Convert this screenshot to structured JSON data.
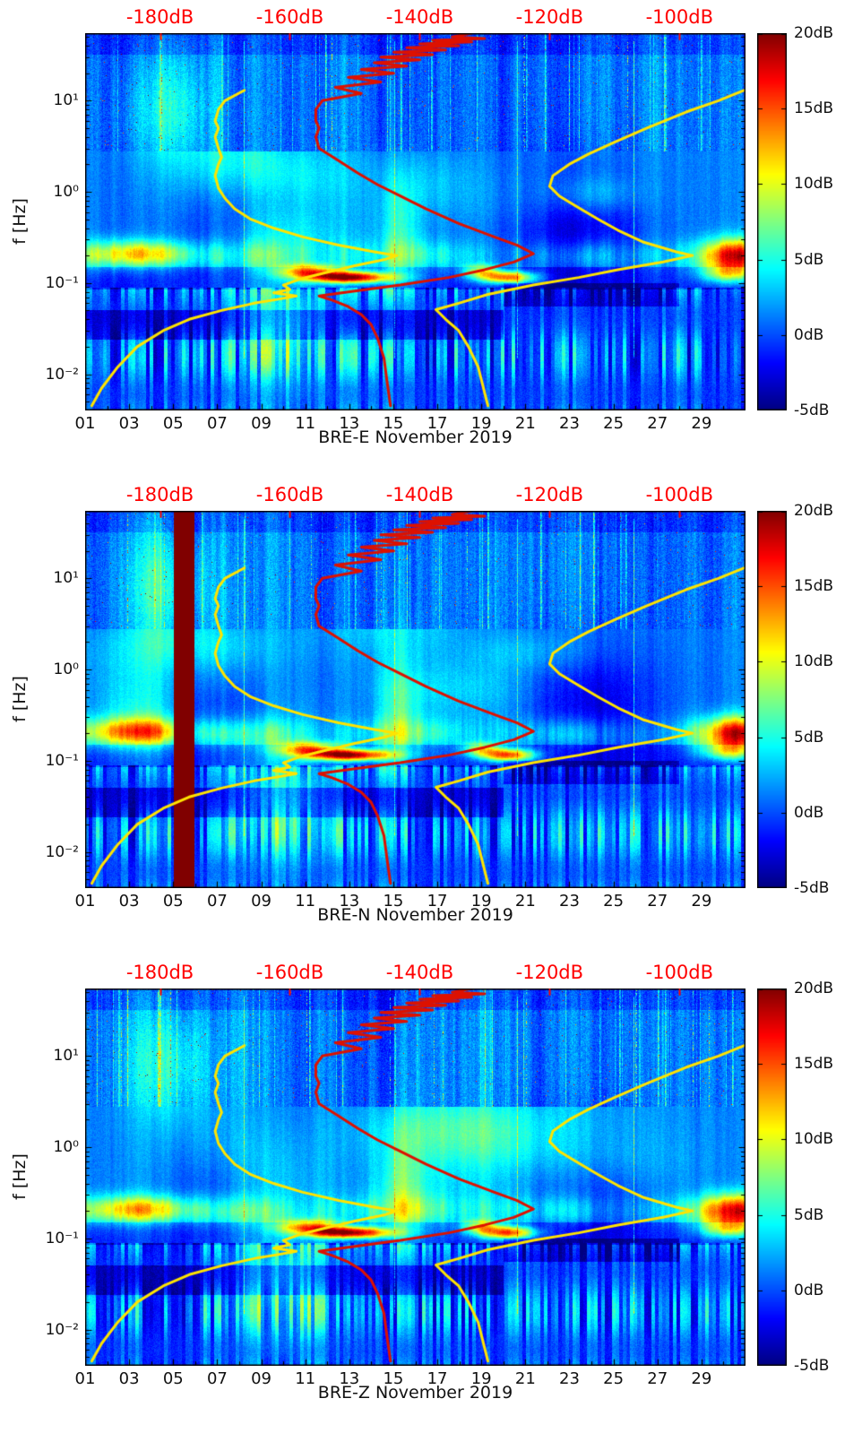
{
  "chart_data": {
    "type": "heatmap",
    "description": "Three seismic noise spectrograms (E, N, Z components) with jet colormap, overlaid median PSD curve (red) and low/high noise model curves (yellow) referenced to the red dB axis on top",
    "ylabel": "f [Hz]",
    "freq_range_hz": [
      0.004,
      55
    ],
    "day_range": [
      1,
      31
    ],
    "value_range_dB": [
      -5,
      20
    ],
    "x_ticks": {
      "days": [
        1,
        3,
        5,
        7,
        9,
        11,
        13,
        15,
        17,
        19,
        21,
        23,
        25,
        27,
        29
      ],
      "labels": [
        "01",
        "03",
        "05",
        "07",
        "09",
        "11",
        "13",
        "15",
        "17",
        "19",
        "21",
        "23",
        "25",
        "27",
        "29"
      ]
    },
    "y_ticks": [
      {
        "f": 0.01,
        "label": "10⁻²"
      },
      {
        "f": 0.1,
        "label": "10⁻¹"
      },
      {
        "f": 1,
        "label": "10⁰"
      },
      {
        "f": 10,
        "label": "10¹"
      }
    ],
    "top_axis": {
      "color": "#ff0000",
      "ticks": [
        {
          "dB": -180,
          "label": "-180dB"
        },
        {
          "dB": -160,
          "label": "-160dB"
        },
        {
          "dB": -140,
          "label": "-140dB"
        },
        {
          "dB": -120,
          "label": "-120dB"
        },
        {
          "dB": -100,
          "label": "-100dB"
        }
      ],
      "mapping": {
        "dB_ref": -180,
        "day_at_ref": 4.4,
        "days_per_20dB": 5.9
      }
    },
    "colorbar": {
      "colormap": "jet",
      "ticks": [
        {
          "v": 20,
          "label": "20dB"
        },
        {
          "v": 15,
          "label": "15dB"
        },
        {
          "v": 10,
          "label": "10dB"
        },
        {
          "v": 5,
          "label": "5dB"
        },
        {
          "v": 0,
          "label": "0dB"
        },
        {
          "v": -5,
          "label": "-5dB"
        }
      ]
    },
    "panels": [
      {
        "title": "BRE-E November 2019",
        "seed": 101,
        "features_extra": []
      },
      {
        "title": "BRE-N November 2019",
        "seed": 202,
        "features_extra": [
          {
            "kind": "vstripe",
            "day_start": 5.05,
            "day_end": 5.95,
            "amp": 26
          }
        ]
      },
      {
        "title": "BRE-Z November 2019",
        "seed": 303,
        "features_extra": []
      }
    ],
    "overlays": [
      {
        "name": "median-psd-curve",
        "color": "#dd1100",
        "width": 3,
        "points_freq_dB": [
          [
            55,
            -132
          ],
          [
            50,
            -135
          ],
          [
            48,
            -130
          ],
          [
            46,
            -138
          ],
          [
            44,
            -132
          ],
          [
            42,
            -140
          ],
          [
            40,
            -134
          ],
          [
            38,
            -142
          ],
          [
            36,
            -136
          ],
          [
            34,
            -144
          ],
          [
            32,
            -138
          ],
          [
            30,
            -146
          ],
          [
            28,
            -140
          ],
          [
            26,
            -147
          ],
          [
            24,
            -142
          ],
          [
            22,
            -149
          ],
          [
            20,
            -144
          ],
          [
            18,
            -151
          ],
          [
            16,
            -146
          ],
          [
            14,
            -153
          ],
          [
            12,
            -149
          ],
          [
            10,
            -155
          ],
          [
            8,
            -156
          ],
          [
            6,
            -156
          ],
          [
            5,
            -155.5
          ],
          [
            4,
            -156
          ],
          [
            3,
            -155.5
          ],
          [
            2.2,
            -152.5
          ],
          [
            1.6,
            -149.5
          ],
          [
            1.2,
            -146.5
          ],
          [
            0.9,
            -143
          ],
          [
            0.65,
            -139
          ],
          [
            0.45,
            -134
          ],
          [
            0.32,
            -128.5
          ],
          [
            0.26,
            -125
          ],
          [
            0.21,
            -122.5
          ],
          [
            0.17,
            -125.5
          ],
          [
            0.14,
            -130
          ],
          [
            0.115,
            -135.5
          ],
          [
            0.095,
            -143
          ],
          [
            0.08,
            -151
          ],
          [
            0.072,
            -155.5
          ],
          [
            0.065,
            -153.5
          ],
          [
            0.055,
            -151
          ],
          [
            0.045,
            -149
          ],
          [
            0.035,
            -147.5
          ],
          [
            0.025,
            -146.5
          ],
          [
            0.015,
            -145.5
          ],
          [
            0.008,
            -145
          ],
          [
            0.0045,
            -144.5
          ]
        ]
      },
      {
        "name": "low-noise-model-curve",
        "color": "#ffe400",
        "width": 3,
        "points_freq_dB": [
          [
            13,
            -167
          ],
          [
            10,
            -170
          ],
          [
            8,
            -171
          ],
          [
            6,
            -171.5
          ],
          [
            5,
            -171
          ],
          [
            4,
            -171.5
          ],
          [
            3,
            -171
          ],
          [
            2.4,
            -170.5
          ],
          [
            2,
            -171
          ],
          [
            1.5,
            -171.5
          ],
          [
            1.1,
            -171
          ],
          [
            0.85,
            -170
          ],
          [
            0.65,
            -168.5
          ],
          [
            0.5,
            -166
          ],
          [
            0.4,
            -162.5
          ],
          [
            0.32,
            -158
          ],
          [
            0.26,
            -152.5
          ],
          [
            0.22,
            -147
          ],
          [
            0.2,
            -143.5
          ],
          [
            0.18,
            -145.5
          ],
          [
            0.155,
            -150
          ],
          [
            0.13,
            -154.5
          ],
          [
            0.11,
            -158.5
          ],
          [
            0.095,
            -161
          ],
          [
            0.085,
            -160
          ],
          [
            0.078,
            -162.5
          ],
          [
            0.072,
            -159
          ],
          [
            0.066,
            -162
          ],
          [
            0.06,
            -165.5
          ],
          [
            0.05,
            -170.5
          ],
          [
            0.04,
            -175.5
          ],
          [
            0.03,
            -179.5
          ],
          [
            0.02,
            -183.5
          ],
          [
            0.012,
            -186.5
          ],
          [
            0.007,
            -189
          ],
          [
            0.0045,
            -190.5
          ]
        ]
      },
      {
        "name": "high-noise-model-curve",
        "color": "#ffe400",
        "width": 3,
        "points_freq_dB": [
          [
            13,
            -90
          ],
          [
            10,
            -94
          ],
          [
            7.5,
            -99
          ],
          [
            5,
            -105
          ],
          [
            3.5,
            -110
          ],
          [
            2.6,
            -114
          ],
          [
            2,
            -117
          ],
          [
            1.5,
            -119.5
          ],
          [
            1.15,
            -120
          ],
          [
            0.9,
            -118.5
          ],
          [
            0.7,
            -116
          ],
          [
            0.5,
            -112.5
          ],
          [
            0.38,
            -109.5
          ],
          [
            0.28,
            -105.5
          ],
          [
            0.22,
            -100.5
          ],
          [
            0.2,
            -98
          ],
          [
            0.17,
            -102.5
          ],
          [
            0.14,
            -109.5
          ],
          [
            0.115,
            -115.5
          ],
          [
            0.095,
            -122.5
          ],
          [
            0.075,
            -129.5
          ],
          [
            0.06,
            -134
          ],
          [
            0.051,
            -137.5
          ],
          [
            0.04,
            -136
          ],
          [
            0.03,
            -134
          ],
          [
            0.02,
            -132.5
          ],
          [
            0.012,
            -131
          ],
          [
            0.0045,
            -129.5
          ]
        ]
      }
    ],
    "features_common": [
      {
        "kind": "blob",
        "day": 3.5,
        "f": 0.21,
        "sd_day": 1.6,
        "s_logf": 0.1,
        "amp": 9
      },
      {
        "kind": "blob",
        "day": 30.6,
        "f": 0.2,
        "sd_day": 1.1,
        "s_logf": 0.13,
        "amp": 13
      },
      {
        "kind": "blob",
        "day": 13.0,
        "f": 0.115,
        "sd_day": 1.4,
        "s_logf": 0.045,
        "amp": 20
      },
      {
        "kind": "blob",
        "day": 11.2,
        "f": 0.135,
        "sd_day": 1.0,
        "s_logf": 0.05,
        "amp": 12
      },
      {
        "kind": "blob",
        "day": 20.2,
        "f": 0.115,
        "sd_day": 0.9,
        "s_logf": 0.05,
        "amp": 16
      },
      {
        "kind": "blob",
        "day": 19.0,
        "f": 0.135,
        "sd_day": 0.6,
        "s_logf": 0.05,
        "amp": 9
      },
      {
        "kind": "blob",
        "day": 23.5,
        "f": 0.4,
        "sd_day": 2.2,
        "s_logf": 0.45,
        "amp": -4.5
      },
      {
        "kind": "blob",
        "day": 7.0,
        "f": 0.35,
        "sd_day": 1.5,
        "s_logf": 0.3,
        "amp": -2.2
      },
      {
        "kind": "blob",
        "day": 10.0,
        "f": 0.035,
        "sd_day": 1.5,
        "s_logf": 0.5,
        "amp": 5
      },
      {
        "kind": "blob",
        "day": 15.3,
        "f": 0.3,
        "sd_day": 0.7,
        "s_logf": 0.5,
        "amp": 4.5
      },
      {
        "kind": "blob",
        "day": 30.2,
        "f": 0.125,
        "sd_day": 0.9,
        "s_logf": 0.07,
        "amp": 8
      },
      {
        "kind": "blob",
        "day": 4.8,
        "f": 8.0,
        "sd_day": 1.3,
        "s_logf": 0.45,
        "amp": 4
      },
      {
        "kind": "band",
        "f_low": 0.024,
        "f_high": 0.05,
        "day_start": 1,
        "day_end": 20,
        "amp": -2.8
      },
      {
        "kind": "band",
        "f_low": 0.085,
        "f_high": 0.15,
        "day_start": 1,
        "day_end": 31,
        "amp": -2.2
      },
      {
        "kind": "band",
        "f_low": 0.055,
        "f_high": 0.1,
        "day_start": 20,
        "day_end": 28,
        "amp": -2.5
      }
    ],
    "tall_lines": [
      {
        "day": 8.2,
        "amp": 6.5
      },
      {
        "day": 15.05,
        "amp": 6
      },
      {
        "day": 20.6,
        "amp": 6.5
      },
      {
        "day": 25.9,
        "amp": 7.5
      }
    ]
  }
}
